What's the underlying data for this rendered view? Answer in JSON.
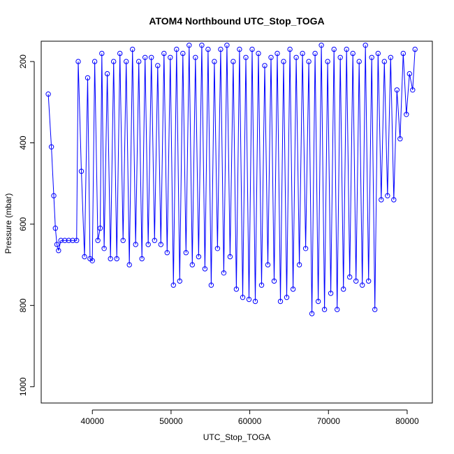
{
  "chart_data": {
    "type": "line",
    "title": "ATOM4 Northbound UTC_Stop_TOGA",
    "xlabel": "UTC_Stop_TOGA",
    "ylabel": "Pressure (mbar)",
    "xlim": [
      33500,
      83200
    ],
    "ylim": [
      1040,
      150
    ],
    "y_reversed": true,
    "x_ticks": [
      40000,
      50000,
      60000,
      70000,
      80000
    ],
    "x_tick_labels": [
      "40000",
      "50000",
      "60000",
      "70000",
      "80000"
    ],
    "y_ticks": [
      200,
      400,
      600,
      800,
      1000
    ],
    "y_tick_labels": [
      "200",
      "400",
      "600",
      "800",
      "1000"
    ],
    "marker": "open-circle",
    "connected": true,
    "grid": false,
    "colors": {
      "series": "#0000ff",
      "axis": "#000000"
    },
    "series": [
      {
        "name": "Pressure",
        "x": [
          34400,
          34800,
          35100,
          35300,
          35500,
          35700,
          36000,
          36500,
          37000,
          37500,
          38000,
          38200,
          38600,
          39000,
          39400,
          39700,
          40000,
          40300,
          40700,
          41000,
          41200,
          41500,
          41900,
          42300,
          42700,
          43100,
          43500,
          43900,
          44300,
          44700,
          45100,
          45500,
          45900,
          46300,
          46700,
          47100,
          47500,
          47900,
          48300,
          48700,
          49100,
          49500,
          49900,
          50300,
          50700,
          51100,
          51500,
          51900,
          52300,
          52700,
          53100,
          53500,
          53900,
          54300,
          54700,
          55100,
          55500,
          55900,
          56300,
          56700,
          57100,
          57500,
          57900,
          58300,
          58700,
          59100,
          59500,
          59900,
          60300,
          60700,
          61100,
          61500,
          61900,
          62300,
          62700,
          63100,
          63500,
          63900,
          64300,
          64700,
          65100,
          65500,
          65900,
          66300,
          66700,
          67100,
          67500,
          67900,
          68300,
          68700,
          69100,
          69500,
          69900,
          70300,
          70700,
          71100,
          71500,
          71900,
          72300,
          72700,
          73100,
          73500,
          73900,
          74300,
          74700,
          75100,
          75500,
          75900,
          76300,
          76700,
          77100,
          77500,
          77900,
          78300,
          78700,
          79100,
          79500,
          79900,
          80300,
          80700,
          81000
        ],
        "y": [
          280,
          410,
          530,
          610,
          650,
          665,
          640,
          640,
          640,
          640,
          640,
          200,
          470,
          680,
          240,
          685,
          690,
          200,
          640,
          610,
          180,
          660,
          230,
          685,
          200,
          685,
          180,
          640,
          200,
          700,
          170,
          650,
          200,
          685,
          190,
          650,
          190,
          640,
          210,
          650,
          180,
          670,
          190,
          750,
          170,
          740,
          180,
          670,
          160,
          700,
          190,
          680,
          160,
          710,
          170,
          750,
          200,
          660,
          170,
          720,
          160,
          680,
          200,
          760,
          170,
          780,
          190,
          785,
          170,
          790,
          180,
          750,
          210,
          700,
          190,
          740,
          180,
          790,
          200,
          780,
          170,
          760,
          190,
          700,
          180,
          660,
          200,
          820,
          180,
          790,
          160,
          810,
          200,
          770,
          170,
          810,
          190,
          760,
          170,
          730,
          180,
          740,
          200,
          750,
          160,
          740,
          190,
          810,
          180,
          540,
          200,
          530,
          190,
          540,
          270,
          390,
          180,
          330,
          230,
          270,
          170
        ]
      }
    ]
  }
}
